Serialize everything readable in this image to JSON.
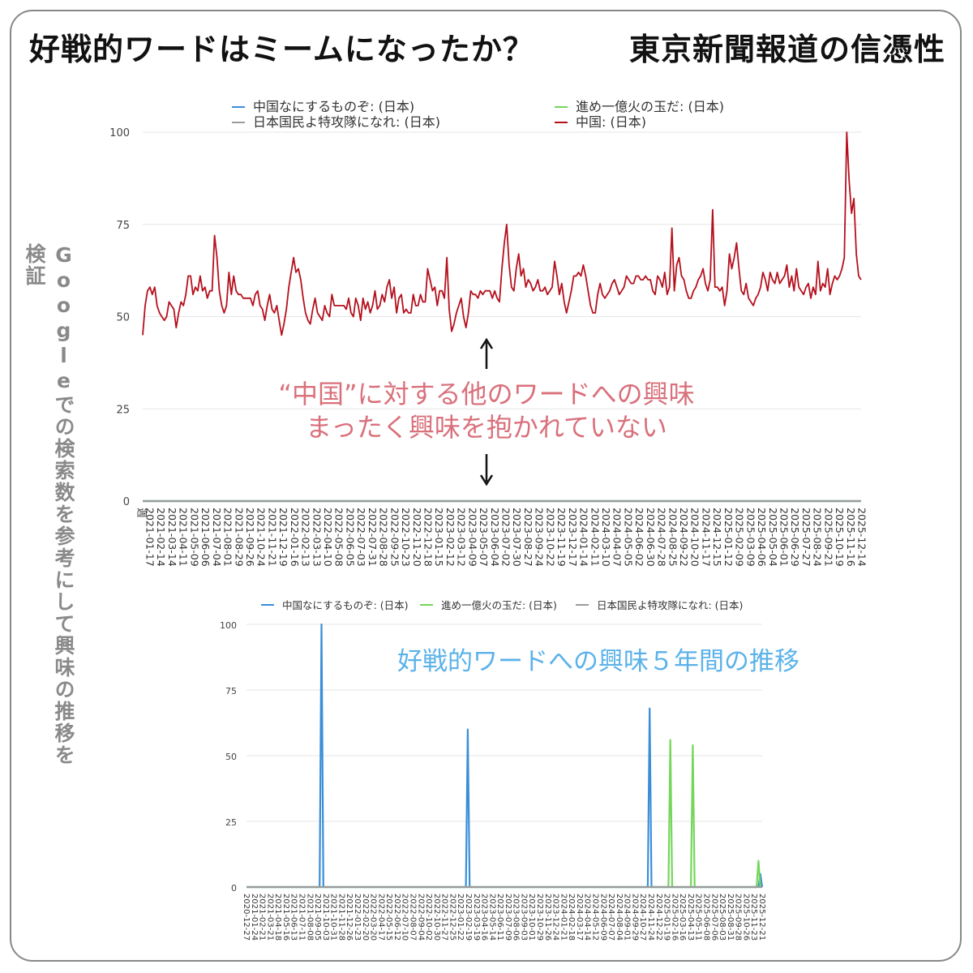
{
  "headline": {
    "left": "好戦的ワードはミームになったか？",
    "right": "東京新聞報道の信憑性"
  },
  "side_label": "Googleでの検索数を参考にして興味の推移を検証",
  "annotations": {
    "top_line1": "“中国”に対する他のワードへの興味",
    "top_line2": "まったく興味を抱かれていない",
    "bottom": "好戦的ワードへの興味５年間の推移"
  },
  "colors": {
    "nani": "#3a8ed8",
    "susume": "#74d65a",
    "tokko": "#9b9b9b",
    "china": "#b5101d"
  },
  "chart_data": [
    {
      "type": "line",
      "title": "",
      "xlabel": "週",
      "ylabel": "",
      "ylim": [
        0,
        100
      ],
      "yticks": [
        0,
        25,
        50,
        75,
        100
      ],
      "grid": true,
      "legend_position": "top",
      "x_tick_labels": [
        "2021-01-17",
        "2021-02-14",
        "2021-03-14",
        "2021-04-11",
        "2021-05-09",
        "2021-06-06",
        "2021-07-04",
        "2021-08-01",
        "2021-08-29",
        "2021-09-26",
        "2021-10-24",
        "2021-11-21",
        "2021-12-19",
        "2022-01-16",
        "2022-02-13",
        "2022-03-13",
        "2022-04-10",
        "2022-05-08",
        "2022-06-05",
        "2022-07-03",
        "2022-07-31",
        "2022-08-28",
        "2022-09-25",
        "2022-10-23",
        "2022-11-20",
        "2022-12-18",
        "2023-01-15",
        "2023-02-12",
        "2023-03-12",
        "2023-04-09",
        "2023-05-07",
        "2023-06-04",
        "2023-07-02",
        "2023-07-30",
        "2023-08-27",
        "2023-09-24",
        "2023-10-22",
        "2023-11-19",
        "2023-12-17",
        "2024-01-14",
        "2024-02-11",
        "2024-03-10",
        "2024-04-07",
        "2024-05-05",
        "2024-06-02",
        "2024-06-30",
        "2024-07-28",
        "2024-08-25",
        "2024-09-22",
        "2024-10-20",
        "2024-11-17",
        "2024-12-15",
        "2025-01-12",
        "2025-02-09",
        "2025-03-09",
        "2025-04-06",
        "2025-05-04",
        "2025-06-01",
        "2025-06-29",
        "2025-07-27",
        "2025-08-24",
        "2025-09-21",
        "2025-10-19",
        "2025-11-16",
        "2025-12-14"
      ],
      "series": [
        {
          "name": "中国なにするものぞ: (日本)",
          "color": "#3a8ed8",
          "constant": 0
        },
        {
          "name": "進め一億火の玉だ: (日本)",
          "color": "#74d65a",
          "constant": 0
        },
        {
          "name": "日本国民よ特攻隊になれ: (日本)",
          "color": "#9b9b9b",
          "constant": 0
        },
        {
          "name": "中国: (日本)",
          "color": "#b5101d",
          "values": [
            45,
            53,
            57,
            58,
            56,
            58,
            53,
            51,
            50,
            49,
            50,
            54,
            53,
            52,
            47,
            51,
            54,
            53,
            56,
            61,
            61,
            56,
            58,
            57,
            61,
            57,
            58,
            55,
            57,
            57,
            72,
            66,
            57,
            53,
            51,
            53,
            62,
            56,
            61,
            57,
            56,
            56,
            55,
            55,
            55,
            55,
            53,
            56,
            57,
            53,
            52,
            49,
            53,
            56,
            52,
            51,
            53,
            49,
            45,
            48,
            52,
            58,
            62,
            66,
            62,
            63,
            60,
            55,
            51,
            49,
            48,
            52,
            55,
            51,
            50,
            49,
            53,
            51,
            50,
            56,
            53,
            53,
            53,
            53,
            53,
            52,
            55,
            51,
            50,
            55,
            53,
            49,
            55,
            52,
            54,
            51,
            53,
            57,
            52,
            53,
            56,
            54,
            58,
            60,
            55,
            58,
            51,
            55,
            56,
            51,
            52,
            51,
            51,
            56,
            53,
            53,
            56,
            54,
            54,
            63,
            60,
            57,
            58,
            53,
            57,
            57,
            55,
            66,
            52,
            46,
            48,
            51,
            53,
            55,
            50,
            47,
            51,
            57,
            56,
            56,
            55,
            57,
            56,
            57,
            57,
            57,
            55,
            57,
            55,
            54,
            63,
            70,
            75,
            64,
            58,
            57,
            63,
            67,
            61,
            63,
            58,
            60,
            59,
            57,
            58,
            60,
            57,
            57,
            58,
            56,
            57,
            58,
            65,
            61,
            56,
            59,
            54,
            51,
            54,
            57,
            61,
            61,
            62,
            61,
            64,
            61,
            57,
            53,
            51,
            51,
            56,
            59,
            56,
            55,
            56,
            57,
            59,
            60,
            58,
            56,
            57,
            58,
            61,
            60,
            59,
            59,
            61,
            61,
            60,
            60,
            61,
            60,
            60,
            57,
            56,
            61,
            60,
            58,
            62,
            56,
            58,
            74,
            57,
            64,
            66,
            61,
            60,
            57,
            55,
            55,
            57,
            58,
            60,
            61,
            63,
            59,
            57,
            60,
            79,
            58,
            58,
            57,
            58,
            53,
            57,
            67,
            63,
            66,
            70,
            63,
            57,
            56,
            59,
            55,
            54,
            53,
            55,
            56,
            58,
            62,
            60,
            57,
            62,
            60,
            59,
            62,
            59,
            60,
            61,
            64,
            58,
            61,
            57,
            63,
            58,
            57,
            56,
            58,
            59,
            55,
            58,
            56,
            65,
            57,
            59,
            58,
            63,
            56,
            59,
            61,
            60,
            61,
            63,
            66,
            100,
            87,
            78,
            82,
            67,
            61,
            60
          ]
        }
      ]
    },
    {
      "type": "line",
      "title": "",
      "xlabel": "",
      "ylabel": "",
      "ylim": [
        0,
        100
      ],
      "yticks": [
        0,
        25,
        50,
        75,
        100
      ],
      "grid": true,
      "legend_position": "top",
      "x_tick_labels": [
        "2020-12-27",
        "2021-01-24",
        "2021-02-21",
        "2021-03-21",
        "2021-04-18",
        "2021-05-16",
        "2021-06-13",
        "2021-07-11",
        "2021-08-08",
        "2021-09-05",
        "2021-10-03",
        "2021-10-31",
        "2021-11-28",
        "2021-12-26",
        "2022-01-23",
        "2022-02-20",
        "2022-03-20",
        "2022-04-17",
        "2022-05-15",
        "2022-06-12",
        "2022-07-10",
        "2022-08-07",
        "2022-09-04",
        "2022-10-02",
        "2022-10-30",
        "2022-11-27",
        "2022-12-25",
        "2023-01-22",
        "2023-02-19",
        "2023-03-19",
        "2023-04-16",
        "2023-05-14",
        "2023-06-11",
        "2023-07-09",
        "2023-08-06",
        "2023-09-03",
        "2023-10-01",
        "2023-10-29",
        "2023-11-26",
        "2023-12-24",
        "2024-01-21",
        "2024-02-18",
        "2024-03-17",
        "2024-04-14",
        "2024-05-12",
        "2024-06-09",
        "2024-07-07",
        "2024-08-04",
        "2024-09-01",
        "2024-09-29",
        "2024-10-27",
        "2024-11-24",
        "2024-12-22",
        "2025-01-19",
        "2025-02-16",
        "2025-03-16",
        "2025-04-13",
        "2025-05-11",
        "2025-06-08",
        "2025-07-06",
        "2025-08-03",
        "2025-08-31",
        "2025-09-28",
        "2025-10-26",
        "2025-11-23",
        "2025-12-21"
      ],
      "series": [
        {
          "name": "中国なにするものぞ: (日本)",
          "color": "#3a8ed8",
          "spikes": [
            {
              "week": 40,
              "value": 100
            },
            {
              "week": 118,
              "value": 60
            },
            {
              "week": 215,
              "value": 68
            },
            {
              "week": 274,
              "value": 5
            }
          ]
        },
        {
          "name": "進め一億火の玉だ: (日本)",
          "color": "#74d65a",
          "spikes": [
            {
              "week": 226,
              "value": 56
            },
            {
              "week": 238,
              "value": 54
            },
            {
              "week": 273,
              "value": 10
            }
          ]
        },
        {
          "name": "日本国民よ特攻隊になれ: (日本)",
          "color": "#9b9b9b",
          "constant": 0
        }
      ]
    }
  ]
}
